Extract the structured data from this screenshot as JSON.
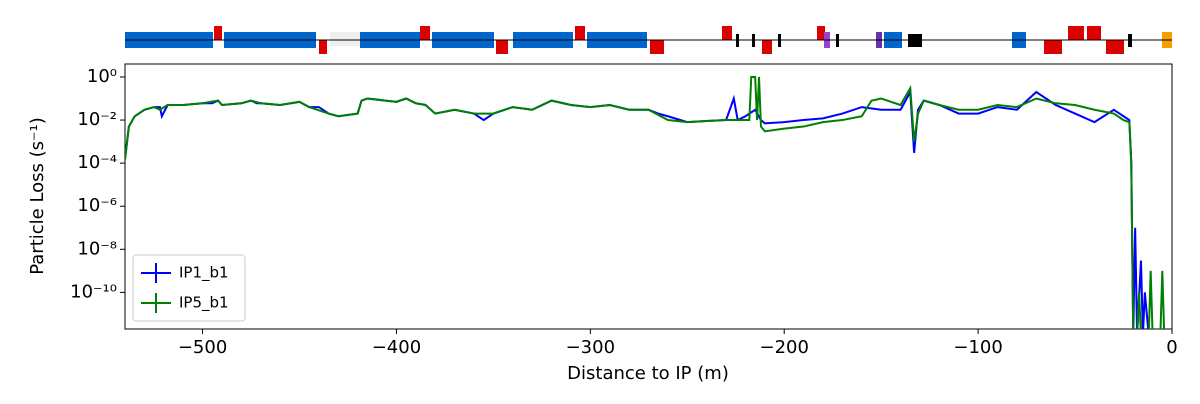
{
  "chart_data": {
    "type": "line",
    "xlabel": "Distance to IP (m)",
    "ylabel": "Particle Loss (s⁻¹)",
    "xlim": [
      -540,
      0
    ],
    "ylim": [
      2e-12,
      4
    ],
    "log_y": true,
    "legend": "lower left",
    "xticks": [
      {
        "value": -500,
        "label": "−500"
      },
      {
        "value": -400,
        "label": "−400"
      },
      {
        "value": -300,
        "label": "−300"
      },
      {
        "value": -200,
        "label": "−200"
      },
      {
        "value": -100,
        "label": "−100"
      },
      0
    ],
    "yticks": [
      {
        "value": 1,
        "label": "10⁰"
      },
      {
        "value": 0.01,
        "label": "10⁻²"
      },
      {
        "value": 0.0001,
        "label": "10⁻⁴"
      },
      {
        "value": 1e-06,
        "label": "10⁻⁶"
      },
      {
        "value": 1e-08,
        "label": "10⁻⁸"
      },
      {
        "value": 1e-10,
        "label": "10⁻¹⁰"
      }
    ],
    "series": [
      {
        "name": "IP1_b1",
        "color": "#0000ff",
        "x": [
          -540,
          -538,
          -535,
          -530,
          -525,
          -522,
          -521,
          -518,
          -510,
          -500,
          -495,
          -492,
          -490,
          -480,
          -475,
          -472,
          -470,
          -460,
          -450,
          -445,
          -440,
          -435,
          -430,
          -420,
          -418,
          -415,
          -400,
          -395,
          -390,
          -385,
          -380,
          -370,
          -360,
          -355,
          -350,
          -340,
          -330,
          -320,
          -310,
          -300,
          -290,
          -280,
          -270,
          -265,
          -260,
          -250,
          -240,
          -230,
          -226,
          -224,
          -220,
          -215,
          -212,
          -210,
          -200,
          -190,
          -180,
          -170,
          -160,
          -150,
          -140,
          -135,
          -133,
          -131,
          -128,
          -120,
          -110,
          -100,
          -90,
          -80,
          -70,
          -60,
          -50,
          -40,
          -30,
          -25,
          -22,
          -21,
          -20,
          -19,
          -18,
          -16,
          -15,
          -14,
          -12
        ],
        "values": [
          0.00015,
          0.005,
          0.015,
          0.03,
          0.04,
          0.04,
          0.015,
          0.05,
          0.05,
          0.06,
          0.06,
          0.08,
          0.05,
          0.06,
          0.08,
          0.06,
          0.06,
          0.05,
          0.07,
          0.04,
          0.04,
          0.02,
          0.015,
          0.02,
          0.08,
          0.1,
          0.07,
          0.1,
          0.06,
          0.05,
          0.02,
          0.03,
          0.02,
          0.01,
          0.02,
          0.04,
          0.03,
          0.08,
          0.05,
          0.04,
          0.05,
          0.03,
          0.03,
          0.02,
          0.015,
          0.008,
          0.009,
          0.01,
          0.1,
          0.01,
          0.015,
          0.03,
          0.01,
          0.007,
          0.008,
          0.01,
          0.012,
          0.02,
          0.04,
          0.03,
          0.03,
          0.2,
          0.0003,
          0.03,
          0.08,
          0.05,
          0.02,
          0.02,
          0.04,
          0.03,
          0.2,
          0.05,
          0.02,
          0.008,
          0.03,
          0.015,
          0.01,
          0.0001,
          1e-12,
          1e-07,
          1e-12,
          3e-09,
          1e-12,
          1e-10,
          1e-12
        ]
      },
      {
        "name": "IP5_b1",
        "color": "#008000",
        "x": [
          -540,
          -538,
          -535,
          -530,
          -525,
          -522,
          -518,
          -510,
          -500,
          -492,
          -490,
          -480,
          -475,
          -470,
          -460,
          -450,
          -445,
          -435,
          -430,
          -420,
          -418,
          -415,
          -400,
          -395,
          -390,
          -385,
          -380,
          -370,
          -360,
          -350,
          -340,
          -330,
          -320,
          -310,
          -300,
          -290,
          -280,
          -270,
          -260,
          -250,
          -240,
          -230,
          -218,
          -217,
          -215,
          -214,
          -213,
          -212,
          -210,
          -200,
          -190,
          -180,
          -170,
          -160,
          -155,
          -150,
          -140,
          -135,
          -133,
          -131,
          -128,
          -120,
          -110,
          -100,
          -90,
          -80,
          -70,
          -60,
          -50,
          -40,
          -30,
          -25,
          -22,
          -21,
          -20,
          -18,
          -17,
          -16,
          -12,
          -11,
          -10,
          -6,
          -5,
          -4
        ],
        "values": [
          0.00015,
          0.005,
          0.015,
          0.03,
          0.04,
          0.03,
          0.05,
          0.05,
          0.06,
          0.08,
          0.05,
          0.06,
          0.08,
          0.06,
          0.05,
          0.07,
          0.04,
          0.02,
          0.015,
          0.02,
          0.08,
          0.1,
          0.07,
          0.1,
          0.06,
          0.05,
          0.02,
          0.03,
          0.02,
          0.02,
          0.04,
          0.03,
          0.08,
          0.05,
          0.04,
          0.05,
          0.03,
          0.03,
          0.01,
          0.008,
          0.009,
          0.01,
          0.01,
          1,
          1,
          0.01,
          1,
          0.005,
          0.003,
          0.004,
          0.005,
          0.008,
          0.01,
          0.015,
          0.08,
          0.1,
          0.05,
          0.3,
          0.001,
          0.02,
          0.08,
          0.05,
          0.03,
          0.03,
          0.05,
          0.04,
          0.1,
          0.06,
          0.05,
          0.03,
          0.02,
          0.01,
          0.008,
          0.0001,
          1e-12,
          1e-12,
          1e-10,
          1e-12,
          1e-12,
          1e-09,
          1e-12,
          1e-12,
          1e-09,
          1e-12
        ]
      }
    ]
  }
}
